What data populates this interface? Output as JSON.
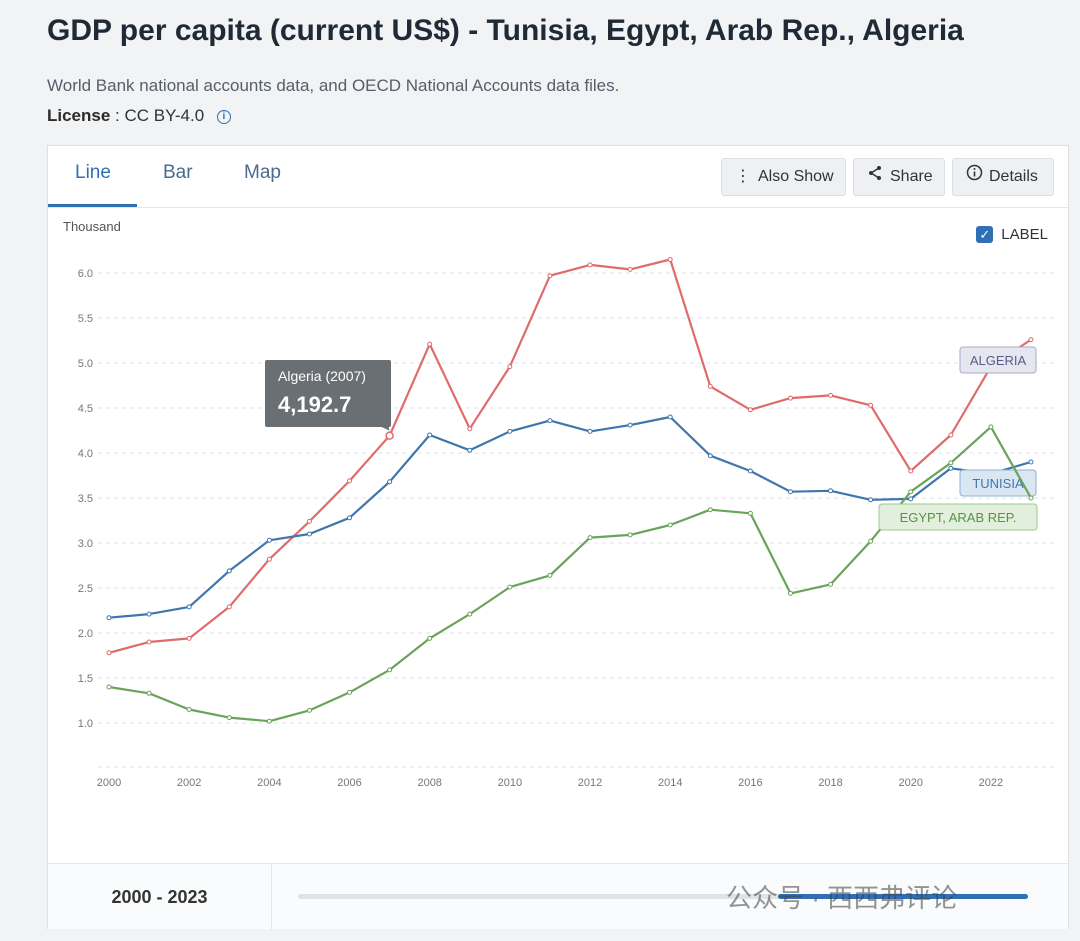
{
  "page": {
    "title": "GDP per capita (current US$) - Tunisia, Egypt, Arab Rep., Algeria",
    "subtitle": "World Bank national accounts data, and OECD National Accounts data files.",
    "license_label": "License",
    "license_value": ": CC BY-4.0",
    "info_icon": "i"
  },
  "tabs": [
    {
      "label": "Line"
    },
    {
      "label": "Bar"
    },
    {
      "label": "Map"
    }
  ],
  "toolbar": {
    "also_show": "Also Show",
    "share": "Share",
    "details": "Details"
  },
  "label_toggle": {
    "text": "LABEL",
    "checked": true
  },
  "unit_label": "Thousand",
  "tooltip": {
    "series": "Algeria (2007)",
    "value": "4,192.7",
    "year": 2007,
    "data_value": 4.1927
  },
  "range": {
    "label": "2000 - 2023",
    "start_fraction": 0.657,
    "end_fraction": 1.0
  },
  "watermark": "公众号 · 西西弗评论",
  "colors": {
    "algeria": "#e06b6b",
    "tunisia": "#3e76ad",
    "egypt": "#6aa35a",
    "accent": "#2f6fb5"
  },
  "chart_data": {
    "type": "line",
    "title": "GDP per capita (current US$) - Tunisia, Egypt, Arab Rep., Algeria",
    "ylabel": "Thousand",
    "xlabel": "",
    "ylim": [
      0.6,
      6.3
    ],
    "xlim": [
      2000,
      2023
    ],
    "yticks": [
      1.0,
      1.5,
      2.0,
      2.5,
      3.0,
      3.5,
      4.0,
      4.5,
      5.0,
      5.5,
      6.0
    ],
    "ytick_labels": [
      "1.0",
      "1.5",
      "2.0",
      "2.5",
      "3.0",
      "3.5",
      "4.0",
      "4.5",
      "5.0",
      "5.5",
      "6.0"
    ],
    "xticks": [
      2000,
      2002,
      2004,
      2006,
      2008,
      2010,
      2012,
      2014,
      2016,
      2018,
      2020,
      2022
    ],
    "xtick_labels": [
      "2000",
      "2002",
      "2004",
      "2006",
      "2008",
      "2010",
      "2012",
      "2014",
      "2016",
      "2018",
      "2020",
      "2022"
    ],
    "grid": true,
    "x": [
      2000,
      2001,
      2002,
      2003,
      2004,
      2005,
      2006,
      2007,
      2008,
      2009,
      2010,
      2011,
      2012,
      2013,
      2014,
      2015,
      2016,
      2017,
      2018,
      2019,
      2020,
      2021,
      2022,
      2023
    ],
    "series": [
      {
        "name": "Algeria",
        "label": "ALGERIA",
        "color_key": "algeria",
        "values": [
          1.78,
          1.9,
          1.94,
          2.29,
          2.82,
          3.24,
          3.69,
          4.1927,
          5.21,
          4.27,
          4.96,
          5.97,
          6.09,
          6.04,
          6.15,
          4.74,
          4.48,
          4.61,
          4.64,
          4.53,
          3.8,
          4.2,
          4.96,
          5.26
        ]
      },
      {
        "name": "Tunisia",
        "label": "TUNISIA",
        "color_key": "tunisia",
        "values": [
          2.17,
          2.21,
          2.29,
          2.69,
          3.03,
          3.1,
          3.28,
          3.68,
          4.2,
          4.03,
          4.24,
          4.36,
          4.24,
          4.31,
          4.4,
          3.97,
          3.8,
          3.57,
          3.58,
          3.48,
          3.49,
          3.83,
          3.77,
          3.9
        ]
      },
      {
        "name": "Egypt, Arab Rep.",
        "label": "EGYPT, ARAB REP.",
        "color_key": "egypt",
        "values": [
          1.4,
          1.33,
          1.15,
          1.06,
          1.02,
          1.14,
          1.34,
          1.59,
          1.94,
          2.21,
          2.51,
          2.64,
          3.06,
          3.09,
          3.2,
          3.37,
          3.33,
          2.44,
          2.54,
          3.02,
          3.57,
          3.89,
          4.29,
          3.5
        ]
      }
    ]
  }
}
